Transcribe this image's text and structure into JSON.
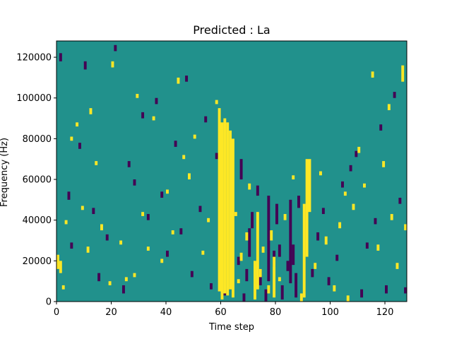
{
  "chart_data": {
    "type": "heatmap",
    "title": "Predicted : La",
    "xlabel": "Time step",
    "ylabel": "Frequency (Hz)",
    "xlim": [
      0,
      128
    ],
    "ylim": [
      0,
      128000
    ],
    "x_ticks": [
      "0",
      "20",
      "40",
      "60",
      "80",
      "100",
      "120"
    ],
    "x_tick_values": [
      0,
      20,
      40,
      60,
      80,
      100,
      120
    ],
    "y_ticks": [
      "0",
      "20000",
      "40000",
      "60000",
      "80000",
      "100000",
      "120000"
    ],
    "y_tick_values": [
      0,
      20000,
      40000,
      60000,
      80000,
      100000,
      120000
    ],
    "grid": false,
    "legend": "none",
    "rows": 128,
    "cols": 128,
    "value_levels": [
      -1,
      0,
      1
    ],
    "colors": {
      "low": "#440154",
      "mid": "#21918c",
      "high": "#fde725"
    },
    "background_value": 0,
    "high_cells": [
      [
        0,
        16,
        23
      ],
      [
        1,
        14,
        20
      ],
      [
        2,
        6,
        8
      ],
      [
        3,
        38,
        40
      ],
      [
        5,
        79,
        81
      ],
      [
        7,
        86,
        88
      ],
      [
        9,
        45,
        47
      ],
      [
        11,
        24,
        27
      ],
      [
        12,
        92,
        95
      ],
      [
        14,
        67,
        69
      ],
      [
        16,
        35,
        38
      ],
      [
        19,
        8,
        10
      ],
      [
        20,
        115,
        118
      ],
      [
        23,
        28,
        30
      ],
      [
        25,
        10,
        12
      ],
      [
        28,
        12,
        14
      ],
      [
        29,
        100,
        102
      ],
      [
        31,
        42,
        44
      ],
      [
        33,
        25,
        27
      ],
      [
        35,
        89,
        91
      ],
      [
        38,
        19,
        21
      ],
      [
        40,
        53,
        55
      ],
      [
        42,
        33,
        35
      ],
      [
        44,
        107,
        110
      ],
      [
        46,
        70,
        72
      ],
      [
        48,
        60,
        63
      ],
      [
        50,
        80,
        82
      ],
      [
        53,
        23,
        25
      ],
      [
        55,
        39,
        41
      ],
      [
        58,
        97,
        99
      ],
      [
        59,
        5,
        95
      ],
      [
        60,
        1,
        88
      ],
      [
        61,
        4,
        90
      ],
      [
        62,
        3,
        88
      ],
      [
        63,
        6,
        84
      ],
      [
        64,
        2,
        80
      ],
      [
        65,
        42,
        44
      ],
      [
        66,
        9,
        11
      ],
      [
        67,
        20,
        24
      ],
      [
        69,
        30,
        34
      ],
      [
        70,
        55,
        58
      ],
      [
        72,
        1,
        20
      ],
      [
        73,
        6,
        44
      ],
      [
        74,
        12,
        16
      ],
      [
        75,
        24,
        27
      ],
      [
        77,
        4,
        8
      ],
      [
        78,
        30,
        35
      ],
      [
        79,
        2,
        22
      ],
      [
        81,
        10,
        12
      ],
      [
        83,
        40,
        43
      ],
      [
        86,
        60,
        62
      ],
      [
        89,
        0,
        4
      ],
      [
        90,
        2,
        48
      ],
      [
        91,
        22,
        70
      ],
      [
        92,
        44,
        70
      ],
      [
        94,
        16,
        19
      ],
      [
        96,
        62,
        64
      ],
      [
        98,
        28,
        32
      ],
      [
        101,
        5,
        8
      ],
      [
        103,
        36,
        39
      ],
      [
        105,
        52,
        54
      ],
      [
        106,
        0,
        3
      ],
      [
        108,
        45,
        48
      ],
      [
        110,
        73,
        76
      ],
      [
        112,
        56,
        58
      ],
      [
        115,
        110,
        113
      ],
      [
        117,
        25,
        28
      ],
      [
        119,
        66,
        69
      ],
      [
        121,
        94,
        97
      ],
      [
        122,
        40,
        43
      ],
      [
        124,
        16,
        19
      ],
      [
        126,
        108,
        116
      ],
      [
        127,
        35,
        38
      ]
    ],
    "low_cells": [
      [
        1,
        118,
        122
      ],
      [
        4,
        50,
        54
      ],
      [
        5,
        26,
        29
      ],
      [
        8,
        75,
        78
      ],
      [
        10,
        114,
        118
      ],
      [
        13,
        43,
        46
      ],
      [
        15,
        10,
        14
      ],
      [
        18,
        30,
        33
      ],
      [
        21,
        123,
        126
      ],
      [
        24,
        4,
        8
      ],
      [
        26,
        66,
        69
      ],
      [
        28,
        57,
        60
      ],
      [
        31,
        90,
        93
      ],
      [
        33,
        40,
        43
      ],
      [
        36,
        97,
        100
      ],
      [
        38,
        51,
        54
      ],
      [
        40,
        22,
        25
      ],
      [
        43,
        76,
        79
      ],
      [
        45,
        33,
        36
      ],
      [
        47,
        108,
        111
      ],
      [
        49,
        12,
        15
      ],
      [
        52,
        44,
        47
      ],
      [
        54,
        88,
        91
      ],
      [
        56,
        6,
        9
      ],
      [
        58,
        70,
        73
      ],
      [
        61,
        3,
        6
      ],
      [
        64,
        40,
        44
      ],
      [
        66,
        18,
        22
      ],
      [
        67,
        60,
        70
      ],
      [
        68,
        0,
        4
      ],
      [
        69,
        10,
        16
      ],
      [
        70,
        22,
        36
      ],
      [
        71,
        36,
        44
      ],
      [
        73,
        52,
        57
      ],
      [
        74,
        8,
        16
      ],
      [
        76,
        0,
        6
      ],
      [
        77,
        10,
        52
      ],
      [
        79,
        17,
        25
      ],
      [
        80,
        38,
        48
      ],
      [
        81,
        22,
        28
      ],
      [
        82,
        1,
        8
      ],
      [
        84,
        15,
        20
      ],
      [
        85,
        9,
        50
      ],
      [
        86,
        18,
        28
      ],
      [
        87,
        2,
        14
      ],
      [
        88,
        46,
        52
      ],
      [
        93,
        12,
        16
      ],
      [
        95,
        30,
        34
      ],
      [
        97,
        43,
        46
      ],
      [
        99,
        8,
        12
      ],
      [
        102,
        20,
        23
      ],
      [
        104,
        56,
        59
      ],
      [
        107,
        64,
        67
      ],
      [
        109,
        71,
        74
      ],
      [
        111,
        2,
        6
      ],
      [
        113,
        26,
        29
      ],
      [
        116,
        38,
        41
      ],
      [
        118,
        84,
        87
      ],
      [
        120,
        4,
        8
      ],
      [
        123,
        100,
        103
      ],
      [
        125,
        48,
        51
      ],
      [
        127,
        4,
        7
      ]
    ]
  }
}
